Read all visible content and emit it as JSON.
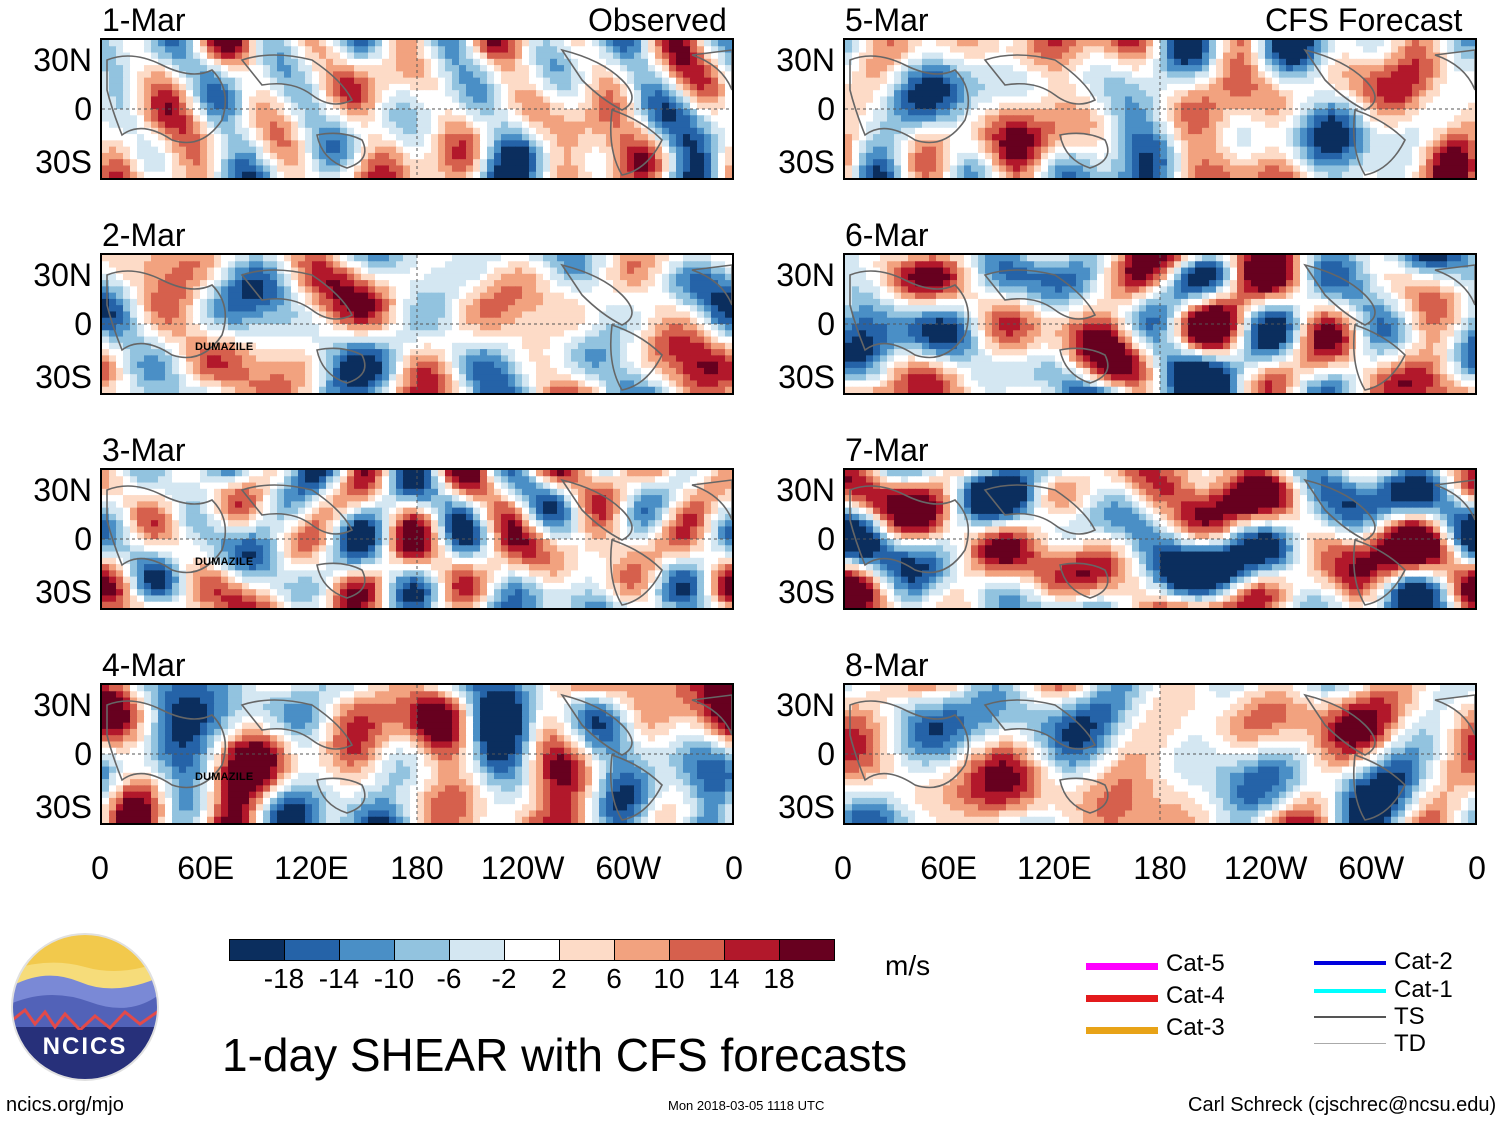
{
  "title": "1-day SHEAR with CFS forecasts",
  "footer": {
    "left": "ncics.org/mjo",
    "center": "Mon 2018-03-05 1118 UTC",
    "right": "Carl Schreck (cjschrec@ncsu.edu)"
  },
  "logo": {
    "text": "NCICS"
  },
  "column_titles": {
    "left": "Observed",
    "right": "CFS Forecast"
  },
  "chart_data": {
    "type": "heatmap",
    "variable": "SHEAR",
    "units": "m/s",
    "panels": [
      {
        "date": "1-Mar",
        "source": "Observed",
        "storms": []
      },
      {
        "date": "2-Mar",
        "source": "Observed",
        "storms": [
          "DUMAZILE"
        ]
      },
      {
        "date": "3-Mar",
        "source": "Observed",
        "storms": [
          "DUMAZILE"
        ]
      },
      {
        "date": "4-Mar",
        "source": "Observed",
        "storms": [
          "DUMAZILE"
        ]
      },
      {
        "date": "5-Mar",
        "source": "CFS Forecast",
        "storms": []
      },
      {
        "date": "6-Mar",
        "source": "CFS Forecast",
        "storms": []
      },
      {
        "date": "7-Mar",
        "source": "CFS Forecast",
        "storms": []
      },
      {
        "date": "8-Mar",
        "source": "CFS Forecast",
        "storms": []
      }
    ],
    "x_ticks": [
      "0",
      "60E",
      "120E",
      "180",
      "120W",
      "60W",
      "0"
    ],
    "y_ticks": [
      "30N",
      "0",
      "30S"
    ],
    "colorbar": {
      "ticks": [
        "-18",
        "-14",
        "-10",
        "-6",
        "-2",
        "2",
        "6",
        "10",
        "14",
        "18"
      ],
      "colors": [
        "#0b2e5e",
        "#2563a8",
        "#4a8fc6",
        "#92c3df",
        "#d4e7f2",
        "#ffffff",
        "#fddbc7",
        "#f2a27f",
        "#d6604d",
        "#b2182b",
        "#67001f"
      ],
      "units": "m/s"
    },
    "legend": [
      {
        "label": "Cat-5",
        "color": "#ff00ff"
      },
      {
        "label": "Cat-4",
        "color": "#e31a1c"
      },
      {
        "label": "Cat-3",
        "color": "#e8a317"
      },
      {
        "label": "Cat-2",
        "color": "#0000dd"
      },
      {
        "label": "Cat-1",
        "color": "#00ffff"
      },
      {
        "label": "TS",
        "color": "#555555"
      },
      {
        "label": "TD",
        "color": "#aaaaaa"
      }
    ]
  }
}
